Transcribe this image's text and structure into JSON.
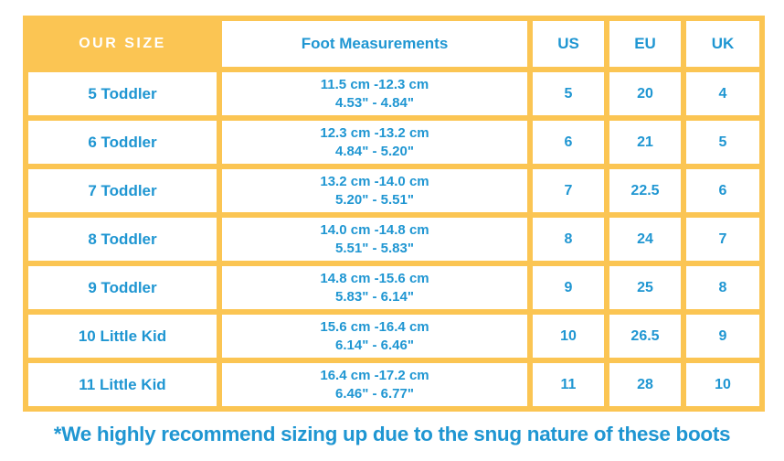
{
  "chart_data": {
    "type": "table",
    "columns": [
      "OUR SIZE",
      "Foot Measurements",
      "US",
      "EU",
      "UK"
    ],
    "rows": [
      {
        "our_size": "5 Toddler",
        "foot_cm": "11.5 cm -12.3 cm",
        "foot_in": "4.53\" - 4.84\"",
        "us": "5",
        "eu": "20",
        "uk": "4"
      },
      {
        "our_size": "6 Toddler",
        "foot_cm": "12.3 cm -13.2 cm",
        "foot_in": "4.84\" - 5.20\"",
        "us": "6",
        "eu": "21",
        "uk": "5"
      },
      {
        "our_size": "7 Toddler",
        "foot_cm": "13.2 cm -14.0 cm",
        "foot_in": "5.20\" - 5.51\"",
        "us": "7",
        "eu": "22.5",
        "uk": "6"
      },
      {
        "our_size": "8 Toddler",
        "foot_cm": "14.0 cm -14.8 cm",
        "foot_in": "5.51\" - 5.83\"",
        "us": "8",
        "eu": "24",
        "uk": "7"
      },
      {
        "our_size": "9 Toddler",
        "foot_cm": "14.8 cm -15.6 cm",
        "foot_in": "5.83\" - 6.14\"",
        "us": "9",
        "eu": "25",
        "uk": "8"
      },
      {
        "our_size": "10 Little Kid",
        "foot_cm": "15.6 cm -16.4 cm",
        "foot_in": "6.14\" - 6.46\"",
        "us": "10",
        "eu": "26.5",
        "uk": "9"
      },
      {
        "our_size": "11 Little Kid",
        "foot_cm": "16.4 cm -17.2 cm",
        "foot_in": "6.46\" - 6.77\"",
        "us": "11",
        "eu": "28",
        "uk": "10"
      }
    ],
    "footnote": "*We highly recommend sizing up due to the snug nature of these boots",
    "layout_hints": {
      "header_row": true,
      "grid": "yellow borders between white cells"
    }
  },
  "colors": {
    "accent_yellow": "#FBC553",
    "text_blue": "#1F96D2",
    "header_text_white": "#FFFFFF"
  }
}
